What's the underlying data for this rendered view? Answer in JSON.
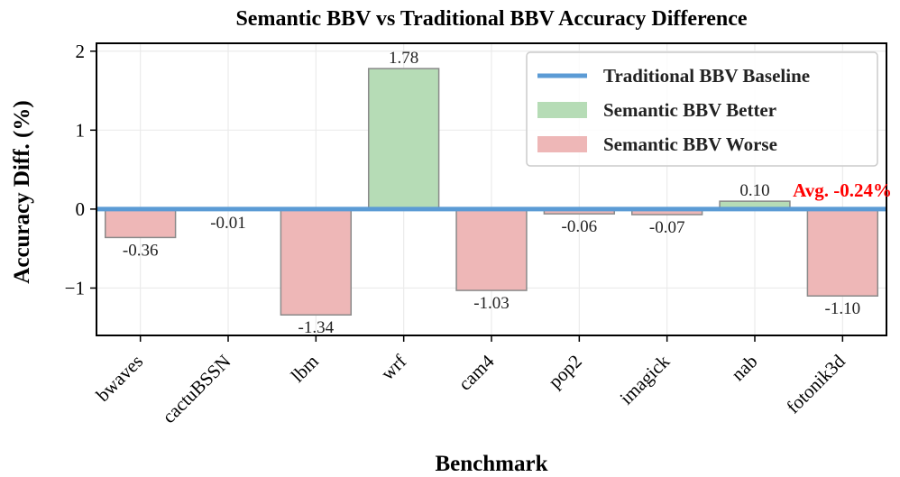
{
  "chart_data": {
    "type": "bar",
    "title": "Semantic BBV vs Traditional BBV Accuracy Difference",
    "xlabel": "Benchmark",
    "ylabel": "Accuracy Diff. (%)",
    "categories": [
      "bwaves",
      "cactuBSSN",
      "lbm",
      "wrf",
      "cam4",
      "pop2",
      "imagick",
      "nab",
      "fotonik3d"
    ],
    "values": [
      -0.36,
      -0.01,
      -1.34,
      1.78,
      -1.03,
      -0.06,
      -0.07,
      0.1,
      -1.1
    ],
    "data_labels": [
      "-0.36",
      "-0.01",
      "-1.34",
      "1.78",
      "-1.03",
      "-0.06",
      "-0.07",
      "0.10",
      "-1.10"
    ],
    "ylim": [
      -1.6,
      2.1
    ],
    "yticks": [
      -1,
      0,
      1,
      2
    ],
    "ytick_labels": [
      "−1",
      "0",
      "1",
      "2"
    ],
    "grid": true,
    "legend_position": "top-right",
    "legend": [
      {
        "label": "Traditional BBV Baseline",
        "kind": "line",
        "color": "#5b9bd5"
      },
      {
        "label": "Semantic BBV Better",
        "kind": "patch",
        "color": "#b6dcb6"
      },
      {
        "label": "Semantic BBV Worse",
        "kind": "patch",
        "color": "#eeb7b7"
      }
    ],
    "baseline": {
      "value": 0,
      "color": "#5b9bd5"
    },
    "annotation": {
      "text": "Avg. -0.24%",
      "value": -0.24,
      "color": "#ff0000"
    },
    "colors": {
      "better": "#b6dcb6",
      "worse": "#eeb7b7",
      "edge": "#8a8a8a"
    }
  }
}
